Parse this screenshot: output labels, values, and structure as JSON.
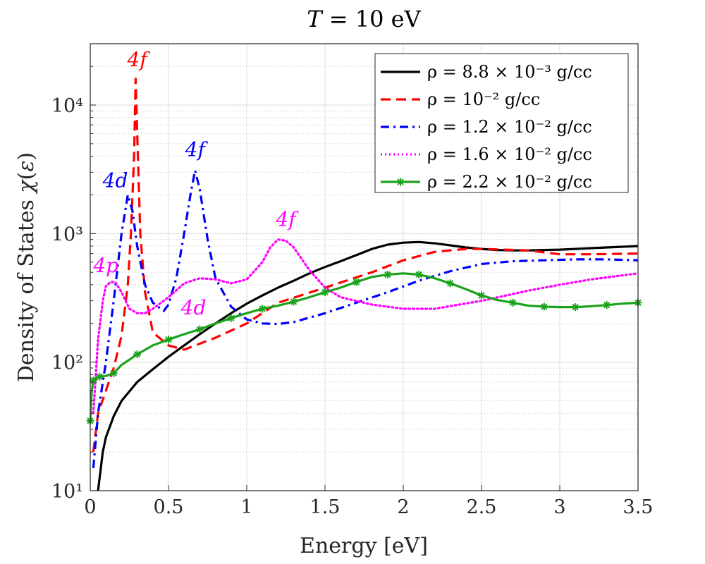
{
  "chart_data": {
    "type": "line",
    "title": "T = 10 eV",
    "xlabel": "Energy [eV]",
    "ylabel": "Density of States χ(ε)",
    "xlim": [
      0,
      3.5
    ],
    "ylim": [
      10,
      30000
    ],
    "yscale": "log",
    "grid": true,
    "legend_position": "top-right",
    "x_ticks": [
      "0",
      "0.5",
      "1",
      "1.5",
      "2",
      "2.5",
      "3",
      "3.5"
    ],
    "x_tick_values": [
      0,
      0.5,
      1,
      1.5,
      2,
      2.5,
      3,
      3.5
    ],
    "y_ticks": [
      "10¹",
      "10²",
      "10³",
      "10⁴"
    ],
    "y_tick_values": [
      10,
      100,
      1000,
      10000
    ],
    "series": [
      {
        "name": "ρ = 8.8 × 10⁻³ g/cc",
        "color": "#000000",
        "style": "solid",
        "x": [
          0.05,
          0.08,
          0.1,
          0.15,
          0.2,
          0.3,
          0.4,
          0.5,
          0.6,
          0.7,
          0.8,
          0.9,
          1.0,
          1.1,
          1.2,
          1.3,
          1.4,
          1.5,
          1.6,
          1.7,
          1.8,
          1.9,
          2.0,
          2.1,
          2.2,
          2.3,
          2.4,
          2.5,
          2.6,
          2.7,
          2.8,
          2.9,
          3.0,
          3.1,
          3.2,
          3.3,
          3.4,
          3.5
        ],
        "y": [
          10,
          20,
          26,
          38,
          50,
          70,
          88,
          110,
          135,
          165,
          200,
          240,
          285,
          330,
          380,
          430,
          490,
          550,
          610,
          680,
          760,
          820,
          850,
          860,
          840,
          810,
          780,
          760,
          745,
          740,
          740,
          745,
          750,
          760,
          770,
          780,
          790,
          800
        ]
      },
      {
        "name": "ρ = 10⁻² g/cc",
        "color": "#ff0000",
        "style": "dashed",
        "x": [
          0.02,
          0.05,
          0.1,
          0.15,
          0.2,
          0.24,
          0.26,
          0.28,
          0.29,
          0.3,
          0.32,
          0.35,
          0.4,
          0.5,
          0.6,
          0.8,
          1.0,
          1.2,
          1.5,
          1.8,
          2.0,
          2.2,
          2.4,
          2.5,
          2.8,
          3.0,
          3.2,
          3.5
        ],
        "y": [
          20,
          40,
          60,
          90,
          160,
          400,
          1000,
          4000,
          16000,
          6000,
          1000,
          350,
          170,
          135,
          125,
          155,
          200,
          290,
          380,
          500,
          620,
          720,
          760,
          760,
          740,
          690,
          690,
          700
        ]
      },
      {
        "name": "ρ = 1.2 × 10⁻² g/cc",
        "color": "#0000ff",
        "style": "dashdot",
        "x": [
          0.02,
          0.05,
          0.1,
          0.15,
          0.2,
          0.24,
          0.27,
          0.3,
          0.35,
          0.4,
          0.47,
          0.5,
          0.55,
          0.6,
          0.64,
          0.67,
          0.7,
          0.75,
          0.8,
          0.9,
          1.0,
          1.1,
          1.2,
          1.3,
          1.5,
          1.7,
          1.9,
          2.1,
          2.3,
          2.5,
          2.7,
          2.9,
          3.1,
          3.3,
          3.5
        ],
        "y": [
          15,
          40,
          100,
          300,
          1000,
          2000,
          1500,
          800,
          400,
          290,
          250,
          280,
          450,
          1000,
          2000,
          3100,
          2200,
          900,
          450,
          270,
          215,
          200,
          198,
          205,
          240,
          290,
          350,
          430,
          510,
          580,
          610,
          620,
          630,
          630,
          620
        ]
      },
      {
        "name": "ρ = 1.6 × 10⁻² g/cc",
        "color": "#ff00ff",
        "style": "dotted",
        "x": [
          0.02,
          0.05,
          0.08,
          0.1,
          0.13,
          0.16,
          0.2,
          0.25,
          0.3,
          0.35,
          0.4,
          0.5,
          0.6,
          0.7,
          0.8,
          0.9,
          1.0,
          1.1,
          1.15,
          1.2,
          1.25,
          1.3,
          1.4,
          1.5,
          1.6,
          1.8,
          2.0,
          2.2,
          2.5,
          2.8,
          3.0,
          3.2,
          3.5
        ],
        "y": [
          40,
          150,
          300,
          390,
          420,
          420,
          350,
          260,
          240,
          240,
          260,
          320,
          410,
          450,
          440,
          410,
          440,
          600,
          780,
          900,
          880,
          780,
          520,
          380,
          320,
          280,
          260,
          260,
          300,
          360,
          400,
          440,
          490
        ]
      },
      {
        "name": "ρ = 2.2 × 10⁻² g/cc",
        "color": "#1aa31a",
        "style": "solid-asterisk",
        "x": [
          0.0,
          0.01,
          0.02,
          0.04,
          0.06,
          0.1,
          0.15,
          0.2,
          0.3,
          0.4,
          0.5,
          0.6,
          0.7,
          0.8,
          0.9,
          1.0,
          1.1,
          1.2,
          1.3,
          1.4,
          1.5,
          1.6,
          1.7,
          1.8,
          1.9,
          2.0,
          2.1,
          2.2,
          2.3,
          2.4,
          2.5,
          2.6,
          2.7,
          2.8,
          2.9,
          3.0,
          3.1,
          3.2,
          3.3,
          3.4,
          3.5
        ],
        "y": [
          35,
          60,
          72,
          76,
          77,
          78,
          82,
          95,
          115,
          135,
          150,
          165,
          180,
          200,
          220,
          240,
          260,
          275,
          295,
          320,
          350,
          380,
          420,
          460,
          480,
          490,
          480,
          450,
          410,
          370,
          330,
          305,
          290,
          275,
          270,
          268,
          268,
          272,
          278,
          285,
          290
        ]
      }
    ],
    "annotations": [
      {
        "text": "4f",
        "x": 0.3,
        "y": 20000,
        "color": "#ff0000"
      },
      {
        "text": "4f",
        "x": 0.67,
        "y": 4000,
        "color": "#0000ff"
      },
      {
        "text": "4d",
        "x": 0.16,
        "y": 2300,
        "color": "#0000ff"
      },
      {
        "text": "4f",
        "x": 1.25,
        "y": 1150,
        "color": "#ff00ff"
      },
      {
        "text": "4p",
        "x": 0.1,
        "y": 500,
        "color": "#ff00ff"
      },
      {
        "text": "4d",
        "x": 0.66,
        "y": 235,
        "color": "#ff00ff"
      }
    ]
  }
}
